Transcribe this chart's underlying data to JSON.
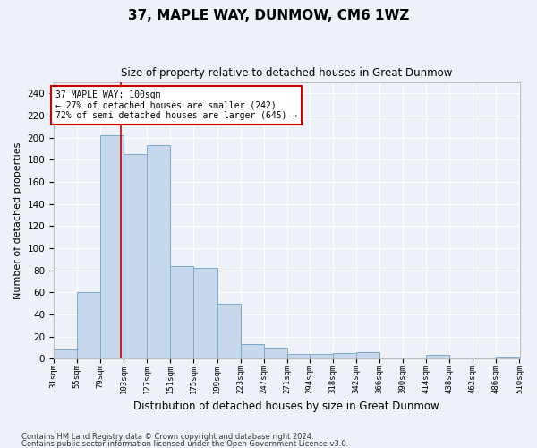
{
  "title": "37, MAPLE WAY, DUNMOW, CM6 1WZ",
  "subtitle": "Size of property relative to detached houses in Great Dunmow",
  "xlabel": "Distribution of detached houses by size in Great Dunmow",
  "ylabel": "Number of detached properties",
  "bar_color": "#c8d8ec",
  "bar_edge_color": "#7aaac8",
  "vline_color": "#cc0000",
  "vline_x": 100,
  "annotation_line1": "37 MAPLE WAY: 100sqm",
  "annotation_line2": "← 27% of detached houses are smaller (242)",
  "annotation_line3": "72% of semi-detached houses are larger (645) →",
  "annotation_box_color": "white",
  "annotation_box_edge": "#cc0000",
  "footer1": "Contains HM Land Registry data © Crown copyright and database right 2024.",
  "footer2": "Contains public sector information licensed under the Open Government Licence v3.0.",
  "background_color": "#eef2f8",
  "grid_color": "white",
  "bin_edges": [
    31,
    55,
    79,
    103,
    127,
    151,
    175,
    199,
    223,
    247,
    271,
    294,
    318,
    342,
    366,
    390,
    414,
    438,
    462,
    486,
    510
  ],
  "bar_heights": [
    8,
    60,
    202,
    185,
    193,
    84,
    82,
    50,
    13,
    10,
    4,
    4,
    5,
    6,
    0,
    0,
    3,
    0,
    0,
    2
  ],
  "ylim": [
    0,
    250
  ],
  "yticks": [
    0,
    20,
    40,
    60,
    80,
    100,
    120,
    140,
    160,
    180,
    200,
    220,
    240
  ],
  "figsize": [
    6.0,
    5.0
  ],
  "dpi": 100
}
